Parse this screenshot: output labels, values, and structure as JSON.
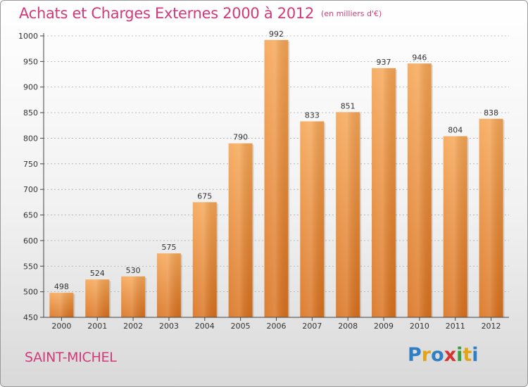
{
  "title": "Achats et Charges Externes 2000 à 2012",
  "unit_label": "(en milliers d'€)",
  "place_name": "SAINT-MICHEL",
  "logo": {
    "letters": [
      "P",
      "r",
      "o",
      "x",
      "i",
      "t",
      "i"
    ],
    "colors": [
      "#2f7fc4",
      "#e3a416",
      "#2f7fc4",
      "#d2352f",
      "#3c9e3c",
      "#e3a416",
      "#2f7fc4"
    ]
  },
  "colors": {
    "title": "#d03a7a",
    "bar_top": "#f6a554",
    "bar_bottom": "#d9701c",
    "axis": "#444444",
    "grid": "#aaaaaa"
  },
  "chart_data": {
    "type": "bar",
    "categories": [
      "2000",
      "2001",
      "2002",
      "2003",
      "2004",
      "2005",
      "2006",
      "2007",
      "2008",
      "2009",
      "2010",
      "2011",
      "2012"
    ],
    "values": [
      498,
      524,
      530,
      575,
      675,
      790,
      992,
      833,
      851,
      937,
      946,
      804,
      838
    ],
    "ylim": [
      450,
      1000
    ],
    "yticks": [
      450,
      500,
      550,
      600,
      650,
      700,
      750,
      800,
      850,
      900,
      950,
      1000
    ],
    "grid": true,
    "data_labels": true
  }
}
